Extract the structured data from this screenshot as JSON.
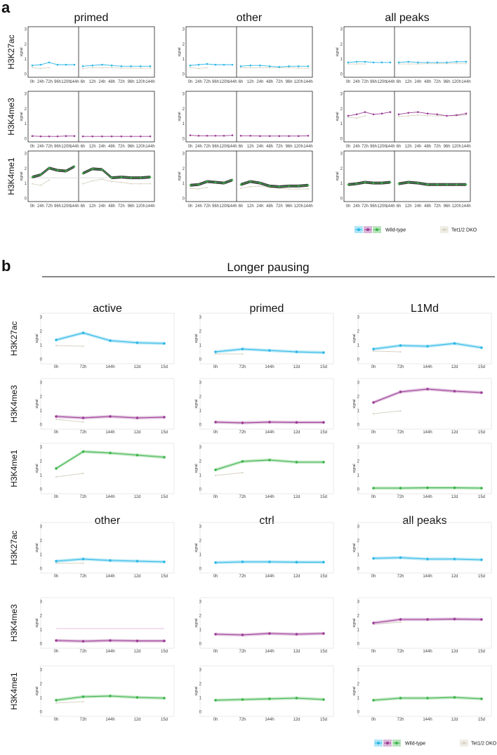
{
  "colors": {
    "H3K27ac": "#2bb7e6",
    "H3K4me3": "#9c3c96",
    "H3K4me1": "#3cb44b",
    "dko": "#d8d3c3",
    "band_H3K27ac": "#aee5f6",
    "band_H3K4me3": "#dbb6d8",
    "band_H3K4me1": "#b8e3bc",
    "ref": "#cfcfcf"
  },
  "panel_a": {
    "letter": "a",
    "columns": [
      "primed",
      "other",
      "all peaks"
    ],
    "marks": [
      "H3K27ac",
      "H3K4me3",
      "H3K4me1"
    ],
    "x_left": [
      "0h",
      "24h",
      "72h",
      "96h",
      "120h",
      "144h"
    ],
    "x_right": [
      "6h",
      "12h",
      "24h",
      "48h",
      "72h",
      "96h",
      "120h",
      "144h"
    ],
    "ylabel": "signal",
    "yticks": [
      "0",
      "1",
      "2",
      "3"
    ],
    "legend": {
      "wt": "Wild-type",
      "dko": "Tet1/2 DKO"
    }
  },
  "panel_b": {
    "letter": "b",
    "title": "Longer pausing",
    "columns_top": [
      "active",
      "primed",
      "L1Md"
    ],
    "columns_bottom": [
      "other",
      "ctrl",
      "all peaks"
    ],
    "marks": [
      "H3K27ac",
      "H3K4me3",
      "H3K4me1"
    ],
    "x": [
      "0h",
      "72h",
      "144h",
      "12d",
      "15d"
    ],
    "ylabel": "signal",
    "yticks": [
      "0",
      "1",
      "2",
      "3"
    ],
    "legend": {
      "wt": "Wild-type",
      "dko": "Tet1/2 DKO"
    }
  },
  "chart_data": [
    {
      "type": "line",
      "title": "a",
      "xlabel": "",
      "ylabel": "signal",
      "ylim": [
        0,
        3
      ],
      "panels": [
        {
          "col": "primed",
          "mark": "H3K27ac",
          "ref": null,
          "left": {
            "wt": [
              0.6,
              0.65,
              0.8,
              0.65,
              0.65,
              0.65
            ],
            "dko": [
              0.45,
              0.4,
              0.45
            ]
          },
          "right": {
            "wt": [
              0.55,
              0.6,
              0.65,
              0.6,
              0.55,
              0.55,
              0.55,
              0.55
            ],
            "dko": [
              0.4,
              0.45,
              0.45,
              0.45,
              0.42,
              0.42,
              0.42,
              0.42
            ]
          }
        },
        {
          "col": "other",
          "mark": "H3K27ac",
          "ref": null,
          "left": {
            "wt": [
              0.6,
              0.65,
              0.7,
              0.65,
              0.65,
              0.65
            ],
            "dko": [
              0.45,
              0.4,
              0.45
            ]
          },
          "right": {
            "wt": [
              0.55,
              0.6,
              0.6,
              0.55,
              0.5,
              0.55,
              0.55,
              0.55
            ],
            "dko": [
              0.45,
              0.45,
              0.45,
              0.45,
              0.45,
              0.45,
              0.42,
              0.42
            ]
          }
        },
        {
          "col": "all peaks",
          "mark": "H3K27ac",
          "ref": null,
          "left": {
            "wt": [
              0.8,
              0.85,
              0.85,
              0.8,
              0.8,
              0.8
            ],
            "dko": [
              0.7,
              0.7,
              0.7
            ]
          },
          "right": {
            "wt": [
              0.8,
              0.85,
              0.8,
              0.8,
              0.8,
              0.8,
              0.85,
              0.85
            ],
            "dko": [
              0.7,
              0.7,
              0.7,
              0.72,
              0.72,
              0.72,
              0.72,
              0.72
            ]
          }
        },
        {
          "col": "primed",
          "mark": "H3K4me3",
          "ref": null,
          "left": {
            "wt": [
              0.2,
              0.18,
              0.18,
              0.18,
              0.2,
              0.2
            ],
            "dko": []
          },
          "right": {
            "wt": [
              0.18,
              0.18,
              0.18,
              0.18,
              0.18,
              0.18,
              0.18,
              0.18
            ],
            "dko": []
          }
        },
        {
          "col": "other",
          "mark": "H3K4me3",
          "ref": null,
          "left": {
            "wt": [
              0.25,
              0.22,
              0.22,
              0.22,
              0.22,
              0.25
            ],
            "dko": []
          },
          "right": {
            "wt": [
              0.22,
              0.22,
              0.2,
              0.2,
              0.2,
              0.2,
              0.2,
              0.22
            ],
            "dko": []
          }
        },
        {
          "col": "all peaks",
          "mark": "H3K4me3",
          "ref": null,
          "left": {
            "wt": [
              1.55,
              1.65,
              1.8,
              1.65,
              1.7,
              1.8
            ],
            "dko": [
              1.45,
              1.4,
              1.55
            ]
          },
          "right": {
            "wt": [
              1.65,
              1.75,
              1.8,
              1.7,
              1.65,
              1.55,
              1.6,
              1.7
            ],
            "dko": [
              1.5,
              1.55,
              1.6,
              1.55,
              1.55,
              1.55,
              1.55,
              1.6
            ]
          }
        },
        {
          "col": "primed",
          "mark": "H3K4me1",
          "ref": 1.4,
          "left": {
            "wt": [
              1.45,
              1.6,
              2.05,
              1.9,
              1.85,
              2.15
            ],
            "dko": [
              1.0,
              0.9,
              1.25
            ]
          },
          "right": {
            "wt": [
              1.7,
              2.0,
              1.95,
              1.4,
              1.45,
              1.4,
              1.4,
              1.45
            ],
            "dko": [
              1.0,
              1.2,
              1.3,
              1.15,
              1.1,
              1.0,
              1.0,
              1.0
            ]
          }
        },
        {
          "col": "other",
          "mark": "H3K4me1",
          "ref": null,
          "left": {
            "wt": [
              0.9,
              0.95,
              1.15,
              1.1,
              1.05,
              1.25
            ],
            "dko": [
              0.7,
              0.65,
              0.75
            ]
          },
          "right": {
            "wt": [
              0.95,
              1.15,
              1.05,
              0.85,
              0.8,
              0.85,
              0.85,
              0.9
            ],
            "dko": [
              0.7,
              0.8,
              0.85,
              0.75,
              0.7,
              0.65,
              0.65,
              0.65
            ]
          }
        },
        {
          "col": "all peaks",
          "mark": "H3K4me1",
          "ref": null,
          "left": {
            "wt": [
              0.95,
              1.0,
              1.1,
              1.05,
              1.05,
              1.1
            ],
            "dko": []
          },
          "right": {
            "wt": [
              1.0,
              1.1,
              1.05,
              0.95,
              0.95,
              0.95,
              0.95,
              0.95
            ],
            "dko": []
          }
        }
      ]
    },
    {
      "type": "line",
      "title": "Longer pausing",
      "xlabel": "",
      "ylabel": "signal",
      "ylim": [
        0,
        3
      ],
      "panels": [
        {
          "col": "active",
          "mark": "H3K27ac",
          "wt": [
            1.4,
            1.9,
            1.35,
            1.2,
            1.15
          ],
          "dko": [
            1.0,
            0.95
          ]
        },
        {
          "col": "primed",
          "mark": "H3K27ac",
          "wt": [
            0.55,
            0.75,
            0.65,
            0.55,
            0.5
          ],
          "dko": [
            0.4,
            0.4
          ]
        },
        {
          "col": "L1Md",
          "mark": "H3K27ac",
          "wt": [
            0.75,
            1.0,
            0.95,
            1.15,
            0.85
          ],
          "dko": [
            0.6,
            0.55
          ]
        },
        {
          "col": "active",
          "mark": "H3K4me3",
          "wt": [
            0.6,
            0.5,
            0.6,
            0.5,
            0.55
          ],
          "dko": [
            0.4,
            0.2
          ]
        },
        {
          "col": "primed",
          "mark": "H3K4me3",
          "wt": [
            0.2,
            0.15,
            0.2,
            0.18,
            0.18
          ],
          "dko": [
            0.15,
            0.1
          ]
        },
        {
          "col": "L1Md",
          "mark": "H3K4me3",
          "wt": [
            1.6,
            2.35,
            2.55,
            2.4,
            2.3
          ],
          "dko": [
            0.8,
            1.0
          ]
        },
        {
          "col": "active",
          "mark": "H3K4me1",
          "wt": [
            1.5,
            2.7,
            2.6,
            2.45,
            2.3
          ],
          "dko": [
            0.9,
            1.15
          ]
        },
        {
          "col": "primed",
          "mark": "H3K4me1",
          "wt": [
            1.4,
            2.0,
            2.1,
            1.95,
            1.95
          ],
          "dko": [
            1.0,
            1.2
          ]
        },
        {
          "col": "L1Md",
          "mark": "H3K4me1",
          "wt": [
            0.1,
            0.1,
            0.12,
            0.12,
            0.1
          ],
          "dko": []
        },
        {
          "col": "other",
          "mark": "H3K27ac",
          "wt": [
            0.55,
            0.7,
            0.6,
            0.55,
            0.5
          ],
          "dko": [
            0.4,
            0.4
          ]
        },
        {
          "col": "ctrl",
          "mark": "H3K27ac",
          "wt": [
            0.45,
            0.5,
            0.5,
            0.48,
            0.48
          ],
          "dko": []
        },
        {
          "col": "all peaks",
          "mark": "H3K27ac",
          "wt": [
            0.75,
            0.8,
            0.7,
            0.7,
            0.65
          ],
          "dko": []
        },
        {
          "col": "other",
          "mark": "H3K4me3",
          "wt": [
            0.25,
            0.2,
            0.25,
            0.22,
            0.22
          ],
          "dko": [],
          "ref": 1.1
        },
        {
          "col": "ctrl",
          "mark": "H3K4me3",
          "wt": [
            0.7,
            0.65,
            0.75,
            0.7,
            0.75
          ],
          "dko": []
        },
        {
          "col": "all peaks",
          "mark": "H3K4me3",
          "wt": [
            1.5,
            1.75,
            1.75,
            1.78,
            1.75
          ],
          "dko": [
            1.4,
            1.55
          ]
        },
        {
          "col": "other",
          "mark": "H3K4me1",
          "wt": [
            0.85,
            1.1,
            1.15,
            1.05,
            1.0
          ],
          "dko": [
            0.65,
            0.75
          ]
        },
        {
          "col": "ctrl",
          "mark": "H3K4me1",
          "wt": [
            0.85,
            0.9,
            0.95,
            1.0,
            0.9
          ],
          "dko": []
        },
        {
          "col": "all peaks",
          "mark": "H3K4me1",
          "wt": [
            0.85,
            1.0,
            1.0,
            1.05,
            0.95
          ],
          "dko": []
        }
      ]
    }
  ]
}
